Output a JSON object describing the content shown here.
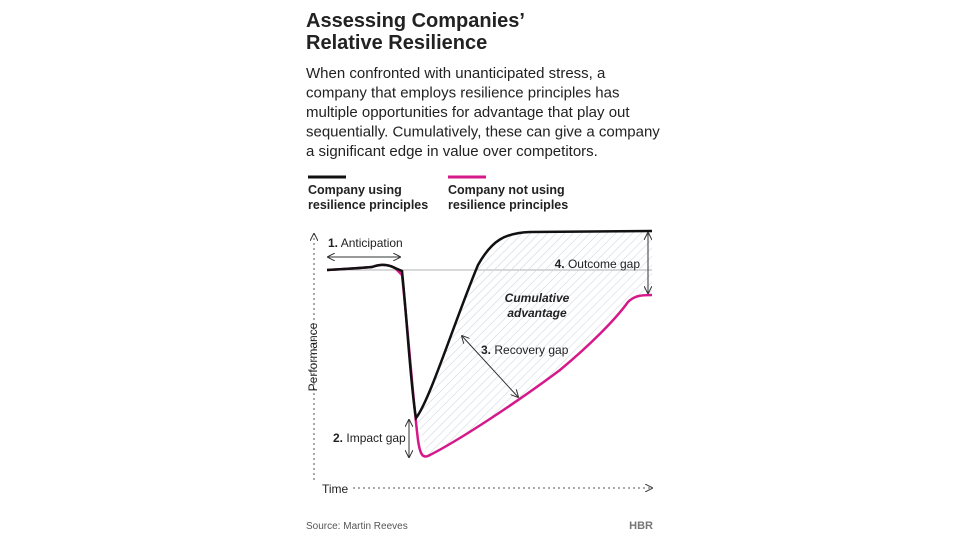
{
  "title": [
    "Assessing Companies’",
    "Relative Resilience"
  ],
  "description": [
    "When confronted with unanticipated stress, a",
    "company that employs resilience principles has",
    "multiple opportunities for advantage that play out",
    "sequentially. Cumulatively, these can give a company",
    "a significant edge in value over competitors."
  ],
  "legend": [
    {
      "label": [
        "Company using",
        "resilience principles"
      ],
      "color": "#111111"
    },
    {
      "label": [
        "Company not using",
        "resilience principles"
      ],
      "color": "#d6198a"
    }
  ],
  "axes": {
    "y": "Performance",
    "x": "Time"
  },
  "annotations": {
    "anticipation": {
      "number": "1.",
      "text": "Anticipation"
    },
    "impact": {
      "number": "2.",
      "text": "Impact gap"
    },
    "recovery": {
      "number": "3.",
      "text": "Recovery gap"
    },
    "outcome": {
      "number": "4.",
      "text": "Outcome gap"
    }
  },
  "area_label": [
    "Cumulative",
    "advantage"
  ],
  "source": "Source: Martin Reeves",
  "brand": "HBR"
}
